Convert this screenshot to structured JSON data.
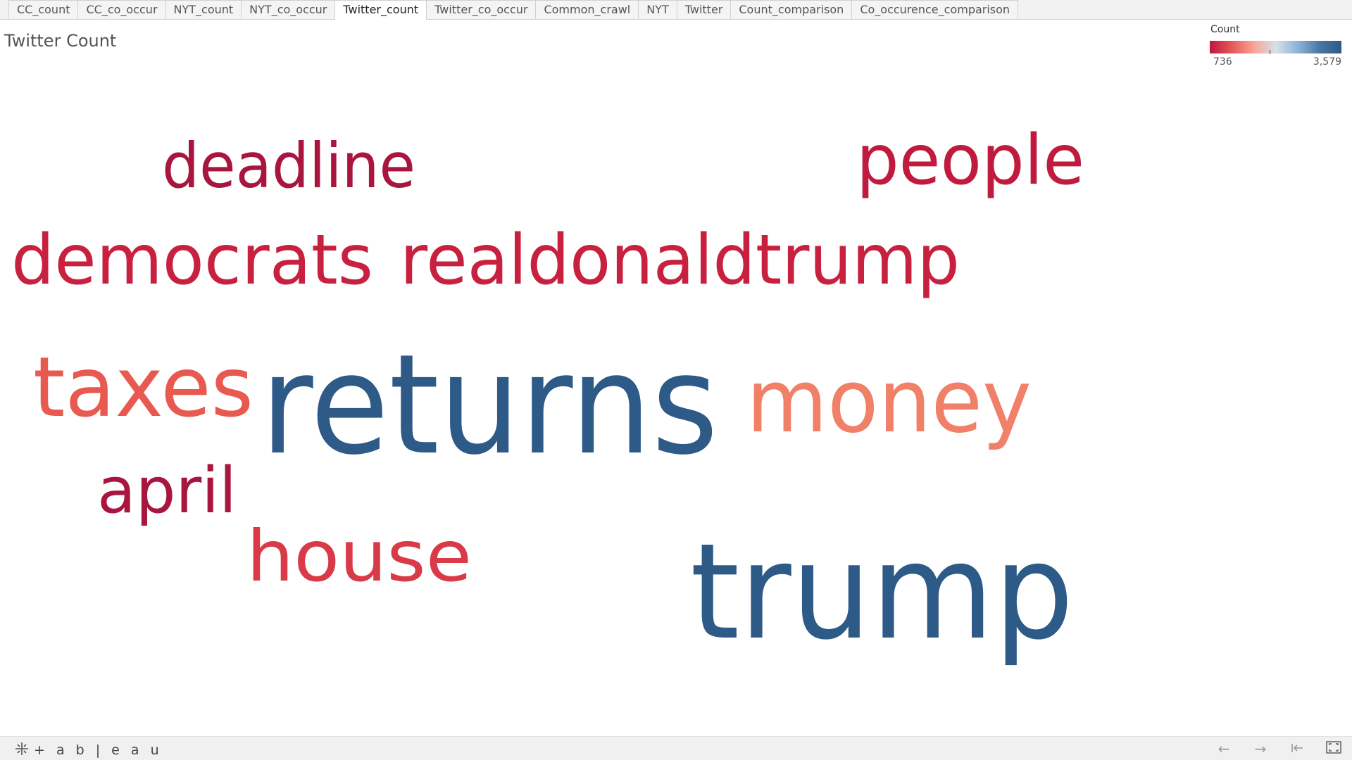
{
  "tabs": [
    {
      "label": "CC_count",
      "active": false
    },
    {
      "label": "CC_co_occur",
      "active": false
    },
    {
      "label": "NYT_count",
      "active": false
    },
    {
      "label": "NYT_co_occur",
      "active": false
    },
    {
      "label": "Twitter_count",
      "active": true
    },
    {
      "label": "Twitter_co_occur",
      "active": false
    },
    {
      "label": "Common_crawl",
      "active": false
    },
    {
      "label": "NYT",
      "active": false
    },
    {
      "label": "Twitter",
      "active": false
    },
    {
      "label": "Count_comparison",
      "active": false
    },
    {
      "label": "Co_occurence_comparison",
      "active": false
    }
  ],
  "sheet": {
    "title": "Twitter Count"
  },
  "legend": {
    "title": "Count",
    "min_label": "736",
    "max_label": "3,579",
    "min": 736,
    "max": 3579,
    "colors": [
      "#c0163a",
      "#e5575a",
      "#f6a592",
      "#d6e0ea",
      "#8fb3d4",
      "#4a76a8",
      "#2e5a87"
    ]
  },
  "chart_data": {
    "type": "wordcloud",
    "title": "Twitter Count",
    "color_measure": "Count",
    "size_measure": "Count",
    "range": [
      736,
      3579
    ],
    "words": [
      {
        "text": "returns",
        "count": 3579,
        "color": "#2e5a87"
      },
      {
        "text": "trump",
        "count": 3300,
        "color": "#2e5a87"
      },
      {
        "text": "money",
        "count": 1500,
        "color": "#f08068"
      },
      {
        "text": "taxes",
        "count": 1350,
        "color": "#e8594f"
      },
      {
        "text": "democrats",
        "count": 1050,
        "color": "#c8213f"
      },
      {
        "text": "realdonaldtrump",
        "count": 1020,
        "color": "#c8213f"
      },
      {
        "text": "house",
        "count": 1000,
        "color": "#d93a48"
      },
      {
        "text": "people",
        "count": 980,
        "color": "#c01b3e"
      },
      {
        "text": "deadline",
        "count": 850,
        "color": "#a8163f"
      },
      {
        "text": "april",
        "count": 736,
        "color": "#a8163f"
      }
    ]
  },
  "footer": {
    "brand": "+ a b | e a u"
  },
  "icons": {
    "brand": "tableau-logo-icon",
    "back": "arrow-left-icon",
    "forward": "arrow-right-icon",
    "first": "revert-icon",
    "fullscreen": "fullscreen-icon"
  }
}
